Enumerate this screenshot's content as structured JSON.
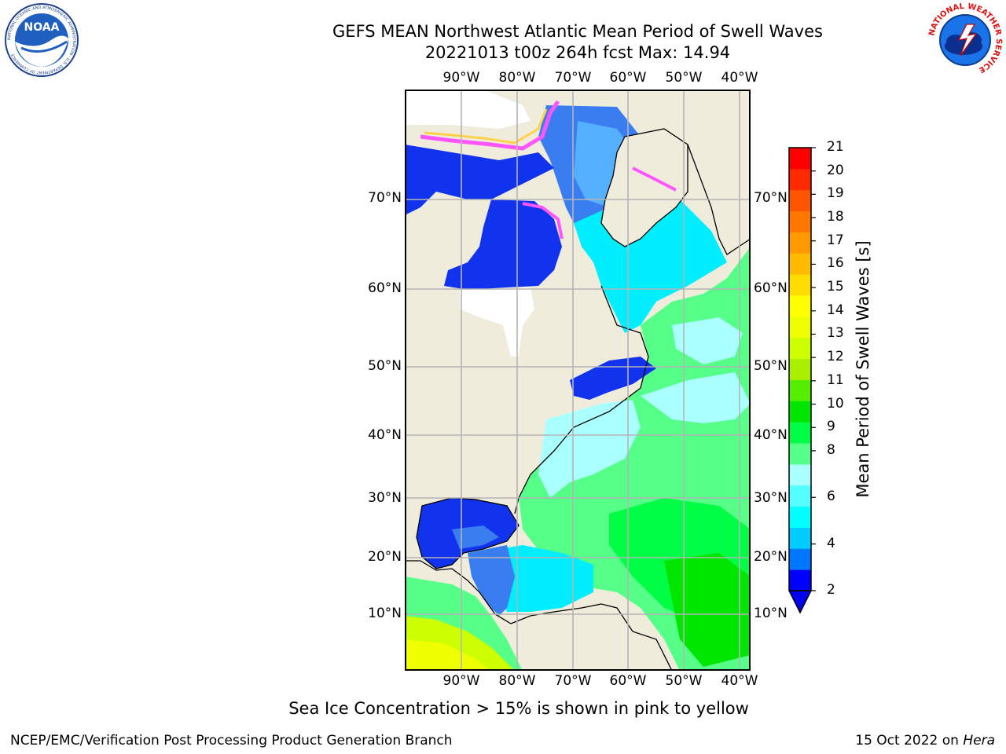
{
  "header": {
    "title_line1": "GEFS MEAN Northwest Atlantic Mean Period of Swell Waves",
    "title_line2": "20221013 t00z 264h fcst   Max: 14.94"
  },
  "logos": {
    "left": {
      "name": "noaa-logo",
      "text": "NOAA",
      "ring_text": "NATIONAL OCEANIC AND ATMOSPHERIC ADMINISTRATION · U.S. DEPARTMENT OF COMMERCE"
    },
    "right": {
      "name": "nws-logo",
      "ring_text": "NATIONAL WEATHER SERVICE"
    }
  },
  "map": {
    "lon_labels": [
      "90°W",
      "80°W",
      "70°W",
      "60°W",
      "50°W",
      "40°W"
    ],
    "lat_labels": [
      "70°N",
      "60°N",
      "50°N",
      "40°N",
      "30°N",
      "20°N",
      "10°N"
    ],
    "colors": {
      "land": "#efecdc",
      "grid": "#b4b4b4",
      "ice_pink": "#ff55ff",
      "ice_yellow": "#ffd24a"
    }
  },
  "colorbar": {
    "label": "Mean Period of Swell Waves [s]",
    "ticks": [
      "2",
      "4",
      "6",
      "8",
      "9",
      "10",
      "11",
      "12",
      "13",
      "14",
      "15",
      "16",
      "17",
      "18",
      "19",
      "20",
      "21"
    ],
    "colors": [
      "#0000ff",
      "#0077ff",
      "#00ccff",
      "#00ffff",
      "#55ffff",
      "#aaffff",
      "#55ff88",
      "#00ff44",
      "#00e600",
      "#55ee00",
      "#aaee00",
      "#ccff00",
      "#eeff00",
      "#ffff00",
      "#ffdd00",
      "#ffbb00",
      "#ff9900",
      "#ff7700",
      "#ff5500",
      "#ff2b00",
      "#ff0000"
    ],
    "under_color": "#0000ee"
  },
  "note": "Sea Ice Concentration > 15% is shown in pink to yellow",
  "footer": {
    "left": "NCEP/EMC/Verification Post Processing Product Generation Branch",
    "right_date": "15 Oct 2022 on ",
    "right_host": "Hera"
  }
}
